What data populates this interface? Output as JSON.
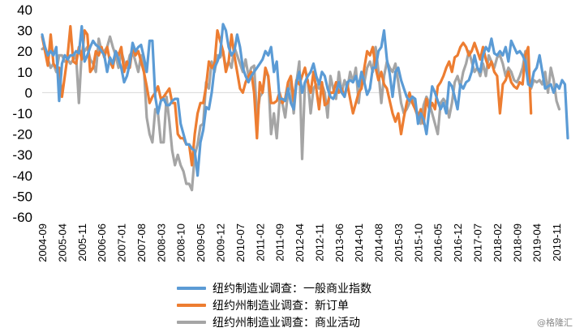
{
  "chart_data": {
    "type": "line",
    "title": "",
    "xlabel": "",
    "ylabel": "",
    "ylim": [
      -60,
      40
    ],
    "yticks": [
      "40",
      "30",
      "20",
      "10",
      "0",
      "-10",
      "-20",
      "-30",
      "-40",
      "-50",
      "-60"
    ],
    "xtick_labels": [
      "2004-09",
      "2005-04",
      "2005-11",
      "2006-06",
      "2007-01",
      "2007-08",
      "2008-03",
      "2008-10",
      "2009-05",
      "2009-12",
      "2010-07",
      "2011-02",
      "2011-09",
      "2012-04",
      "2012-11",
      "2013-06",
      "2014-01",
      "2014-08",
      "2015-03",
      "2015-10",
      "2016-05",
      "2016-12",
      "2017-07",
      "2018-02",
      "2018-09",
      "2019-04",
      "2019-11"
    ],
    "start": "2004-09",
    "grid": false,
    "legend_position": "bottom",
    "series": [
      {
        "name": "纽约制造业调查：一般商业指数",
        "color": "#5b9bd5",
        "values": [
          28,
          22,
          18,
          20,
          18,
          22,
          -4,
          14,
          18,
          16,
          18,
          18,
          20,
          19,
          32,
          15,
          18,
          22,
          25,
          23,
          22,
          20,
          18,
          10,
          17,
          14,
          20,
          16,
          12,
          5,
          8,
          14,
          24,
          20,
          22,
          23,
          17,
          10,
          25,
          25,
          -2,
          -10,
          -4,
          -3,
          -6,
          -6,
          -4,
          -3,
          -3,
          -15,
          -20,
          -25,
          -25,
          -27,
          -28,
          -40,
          -24,
          -18,
          -7,
          -8,
          0,
          12,
          15,
          19,
          33,
          30,
          22,
          18,
          20,
          28,
          22,
          12,
          8,
          5,
          8,
          10,
          12,
          14,
          16,
          20,
          18,
          22,
          10,
          15,
          -3,
          -3,
          -4,
          2,
          -5,
          -8,
          5,
          10,
          0,
          5,
          8,
          10,
          14,
          8,
          4,
          10,
          8,
          2,
          -2,
          -3,
          0,
          5,
          0,
          -2,
          5,
          6,
          5,
          8,
          3,
          10,
          5,
          -1,
          2,
          12,
          12,
          20,
          22,
          30,
          16,
          9,
          -2,
          10,
          12,
          6,
          2,
          -2,
          -4,
          -2,
          -3,
          -15,
          -10,
          -13,
          -20,
          -8,
          3,
          0,
          -4,
          -8,
          -5,
          -10,
          5,
          3,
          -2,
          -8,
          4,
          2,
          5,
          6,
          10,
          18,
          12,
          10,
          18,
          22,
          20,
          26,
          19,
          18,
          20,
          18,
          22,
          15,
          25,
          22,
          19,
          20,
          18,
          15,
          4,
          3,
          10,
          12,
          18,
          10,
          2,
          3,
          4,
          0,
          4,
          2,
          6,
          4,
          -22
        ]
      },
      {
        "name": "纽约州制造业调查：新订单",
        "color": "#ed7d31",
        "values": [
          27,
          20,
          13,
          28,
          14,
          12,
          12,
          -2,
          8,
          18,
          32,
          15,
          14,
          22,
          16,
          30,
          28,
          10,
          12,
          20,
          18,
          22,
          17,
          22,
          15,
          12,
          20,
          18,
          22,
          10,
          15,
          12,
          22,
          18,
          20,
          15,
          10,
          3,
          -5,
          -2,
          0,
          3,
          -3,
          -2,
          0,
          2,
          -5,
          -5,
          -20,
          -22,
          -22,
          -25,
          -25,
          -35,
          -20,
          -10,
          -5,
          -5,
          3,
          15,
          12,
          14,
          30,
          25,
          20,
          10,
          15,
          28,
          18,
          10,
          2,
          0,
          5,
          8,
          10,
          0,
          -22,
          5,
          0,
          12,
          8,
          -5,
          -5,
          -4,
          0,
          -5,
          -3,
          5,
          8,
          -4,
          6,
          4,
          8,
          12,
          5,
          0,
          10,
          2,
          -8,
          5,
          -6,
          -5,
          0,
          0,
          5,
          0,
          2,
          -2,
          4,
          -3,
          -10,
          -5,
          0,
          2,
          12,
          20,
          18,
          22,
          12,
          6,
          10,
          4,
          2,
          -4,
          -10,
          -14,
          -10,
          -20,
          -12,
          -5,
          0,
          -5,
          -8,
          -12,
          -8,
          -15,
          -3,
          -8,
          -5,
          -8,
          3,
          5,
          8,
          12,
          15,
          10,
          17,
          18,
          22,
          24,
          22,
          18,
          20,
          24,
          20,
          16,
          22,
          16,
          12,
          15,
          10,
          8,
          -10,
          4,
          6,
          10,
          5,
          3,
          2,
          5,
          4,
          18,
          22,
          -10
        ]
      },
      {
        "name": "纽约州制造业调查：商业活动",
        "color": "#a5a5a5",
        "values": [
          21,
          22,
          16,
          12,
          14,
          10,
          18,
          18,
          15,
          16,
          14,
          16,
          18,
          -5,
          20,
          20,
          22,
          16,
          14,
          10,
          26,
          20,
          20,
          22,
          27,
          22,
          18,
          12,
          20,
          15,
          12,
          18,
          20,
          15,
          10,
          18,
          12,
          -12,
          -20,
          -24,
          -8,
          -10,
          -24,
          -24,
          -2,
          -14,
          -28,
          -35,
          -30,
          -35,
          -38,
          -44,
          -44,
          -47,
          -30,
          -25,
          -16,
          -15,
          5,
          2,
          15,
          10,
          18,
          17,
          20,
          12,
          15,
          12,
          22,
          18,
          14,
          10,
          16,
          8,
          12,
          13,
          -12,
          -2,
          0,
          10,
          8,
          -20,
          -10,
          -22,
          -4,
          -5,
          -12,
          0,
          5,
          -10,
          5,
          15,
          -32,
          5,
          6,
          -10,
          2,
          4,
          2,
          4,
          0,
          -12,
          8,
          2,
          -3,
          10,
          0,
          6,
          2,
          10,
          5,
          12,
          -5,
          8,
          5,
          12,
          15,
          10,
          22,
          10,
          -5,
          8,
          15,
          12,
          10,
          14,
          5,
          -5,
          -10,
          -8,
          -5,
          -2,
          -8,
          -10,
          -15,
          -6,
          -2,
          -5,
          -10,
          -15,
          -20,
          -5,
          -3,
          -5,
          -12,
          -5,
          5,
          8,
          3,
          10,
          14,
          20,
          15,
          10,
          12,
          8,
          14,
          8,
          18,
          15,
          12,
          17,
          18,
          14,
          8,
          12,
          10,
          6,
          5,
          8,
          12,
          20,
          10,
          2,
          6,
          5,
          6,
          4,
          10,
          0,
          12,
          6,
          -4,
          -8
        ]
      }
    ]
  },
  "watermark": "@格隆汇"
}
